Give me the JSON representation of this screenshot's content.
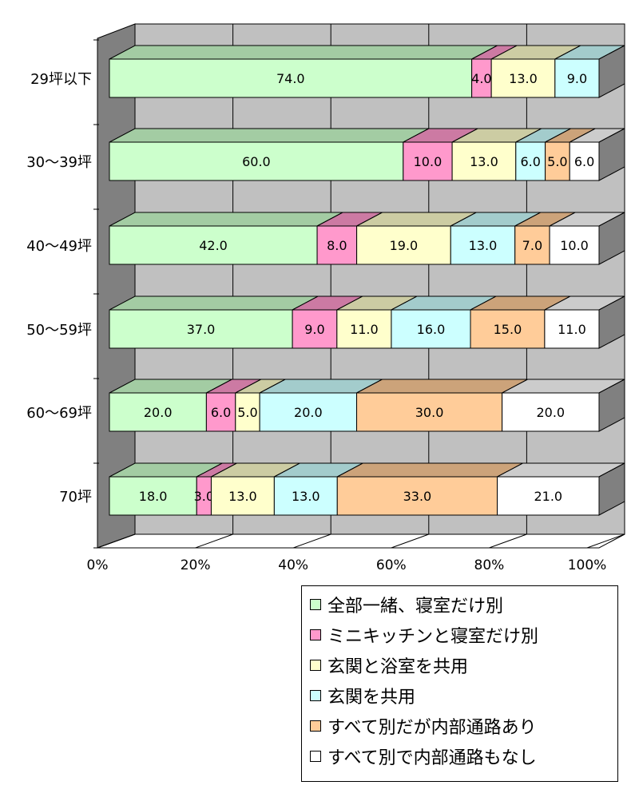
{
  "chart_data": {
    "type": "bar",
    "orientation": "horizontal",
    "stacked": "percent",
    "three_d": true,
    "categories": [
      "29坪以下",
      "30～39坪",
      "40～49坪",
      "50～59坪",
      "60～69坪",
      "70坪"
    ],
    "x_ticks": [
      "0%",
      "20%",
      "40%",
      "60%",
      "80%",
      "100%"
    ],
    "xlim": [
      0,
      100
    ],
    "grid": true,
    "legend_position": "bottom-right",
    "series": [
      {
        "name": "全部一緒、寝室だけ別",
        "color": "#ccffcc",
        "values": [
          74.0,
          60.0,
          42.0,
          37.0,
          20.0,
          18.0
        ],
        "labels": [
          "74.0",
          "60.0",
          "42.0",
          "37.0",
          "20.0",
          "18.0"
        ]
      },
      {
        "name": "ミニキッチンと寝室だけ別",
        "color": "#ff99cc",
        "values": [
          4.0,
          10.0,
          8.0,
          9.0,
          6.0,
          3.0
        ],
        "labels": [
          "4.0",
          "10.0",
          "8.0",
          "9.0",
          "6.0",
          "3.0"
        ]
      },
      {
        "name": "玄関と浴室を共用",
        "color": "#ffffcc",
        "values": [
          13.0,
          13.0,
          19.0,
          11.0,
          5.0,
          13.0
        ],
        "labels": [
          "13.0",
          "13.0",
          "19.0",
          "11.0",
          "5.0",
          "13.0"
        ]
      },
      {
        "name": "玄関を共用",
        "color": "#ccffff",
        "values": [
          9.0,
          6.0,
          13.0,
          16.0,
          20.0,
          13.0
        ],
        "labels": [
          "9.0",
          "6.0",
          "13.0",
          "16.0",
          "20.0",
          "13.0"
        ]
      },
      {
        "name": "すべて別だが内部通路あり",
        "color": "#ffcc99",
        "values": [
          0,
          5.0,
          7.0,
          15.0,
          30.0,
          33.0
        ],
        "labels": [
          "",
          "5.0",
          "7.0",
          "15.0",
          "30.0",
          "33.0"
        ]
      },
      {
        "name": "すべて別で内部通路もなし",
        "color": "#ffffff",
        "values": [
          0,
          6.0,
          10.0,
          11.0,
          20.0,
          21.0
        ],
        "labels": [
          "",
          "6.0",
          "10.0",
          "11.0",
          "20.0",
          "21.0"
        ]
      }
    ]
  }
}
